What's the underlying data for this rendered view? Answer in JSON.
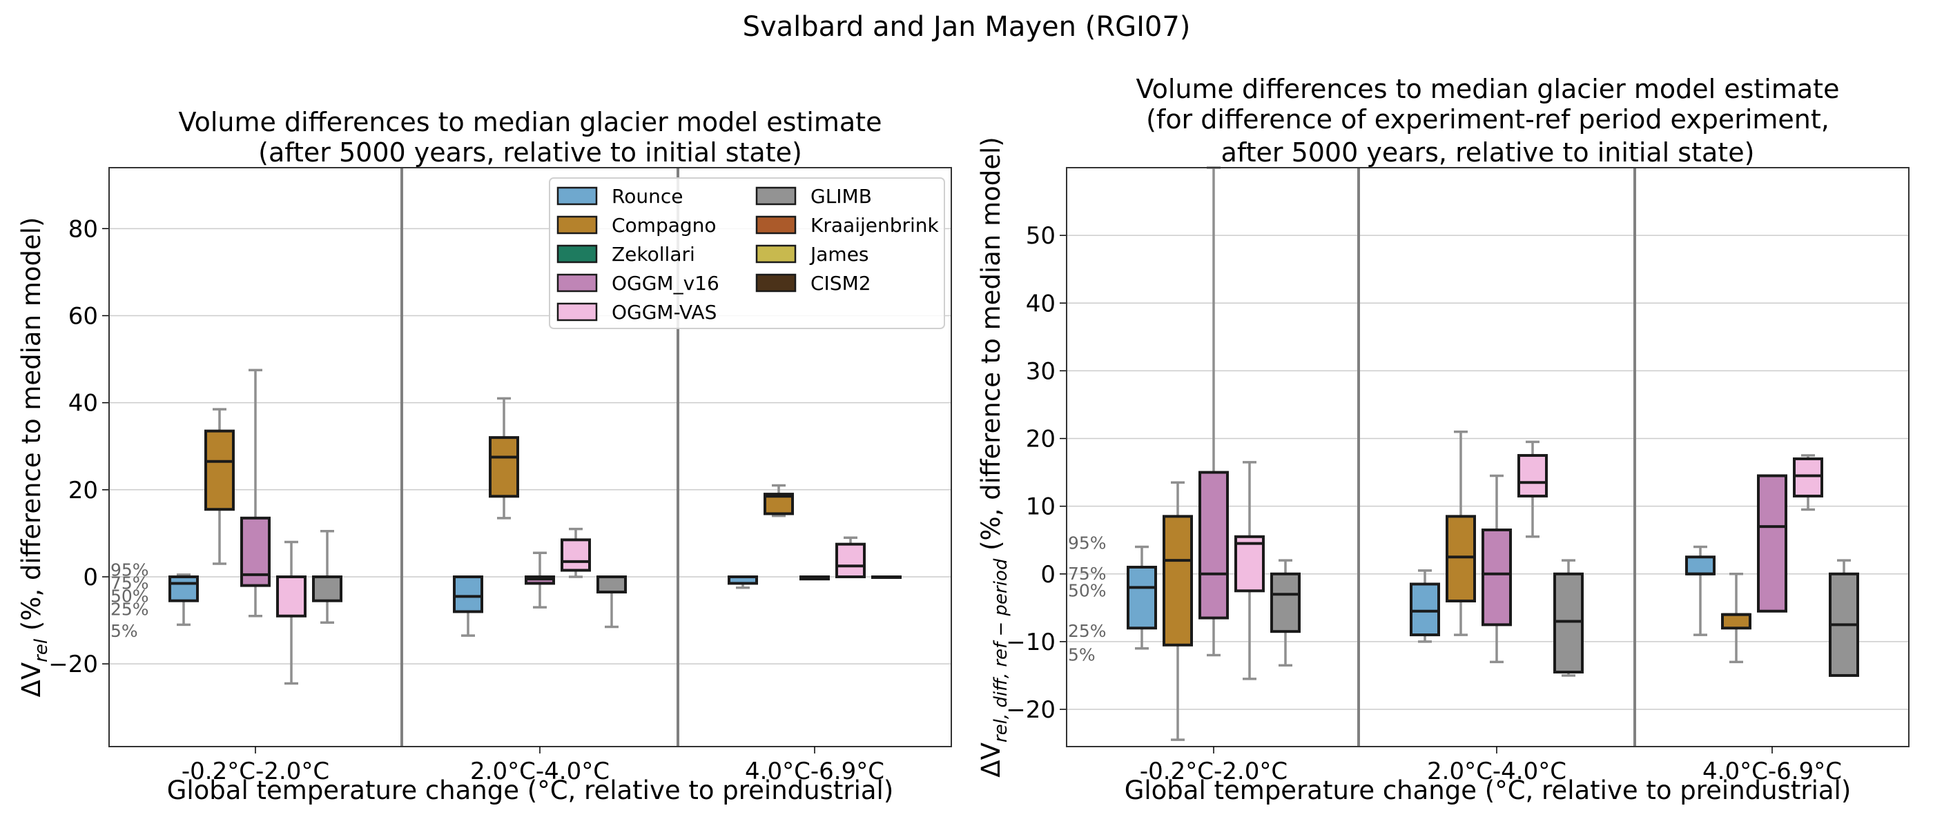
{
  "suptitle": "Svalbard and Jan Mayen (RGI07)",
  "legend": [
    {
      "name": "Rounce",
      "color": "#6fa8ce"
    },
    {
      "name": "Compagno",
      "color": "#b5822c"
    },
    {
      "name": "Zekollari",
      "color": "#1e7b5f"
    },
    {
      "name": "OGGM_v16",
      "color": "#bf85b6"
    },
    {
      "name": "OGGM-VAS",
      "color": "#f1bce0"
    },
    {
      "name": "GLIMB",
      "color": "#939393"
    },
    {
      "name": "Kraaijenbrink",
      "color": "#ab5a2a"
    },
    {
      "name": "James",
      "color": "#c8b94e"
    },
    {
      "name": "CISM2",
      "color": "#4b3219"
    }
  ],
  "chart_data": [
    {
      "type": "box",
      "title_lines": [
        "Volume differences to median glacier model estimate",
        "(after 5000 years, relative to initial state)"
      ],
      "xlabel": "Global temperature change (°C, relative to preindustrial)",
      "ylabel_main": "ΔV",
      "ylabel_sub": "rel",
      "ylabel_rest": " (%, difference to median model)",
      "ylim": [
        -39,
        94
      ],
      "yticks": [
        -20,
        0,
        20,
        40,
        60,
        80
      ],
      "grid": true,
      "legend_position": "top-right",
      "categories": [
        "-0.2°C-2.0°C",
        "2.0°C-4.0°C",
        "4.0°C-6.9°C"
      ],
      "percentile_labels": [
        {
          "text": "95%",
          "y": 1.5
        },
        {
          "text": "75%",
          "y": -1.5
        },
        {
          "text": "50%",
          "y": -4.5
        },
        {
          "text": "25%",
          "y": -7.5
        },
        {
          "text": "5%",
          "y": -12.5
        }
      ],
      "boxes": [
        {
          "cat": 0,
          "model": "Rounce",
          "slot": 0,
          "p5": -11,
          "p25": -5.5,
          "med": -1.5,
          "p75": 0,
          "p95": 0.5
        },
        {
          "cat": 0,
          "model": "Compagno",
          "slot": 1,
          "p5": 3,
          "p25": 15.5,
          "med": 26.5,
          "p75": 33.5,
          "p95": 38.5
        },
        {
          "cat": 0,
          "model": "OGGM_v16",
          "slot": 2,
          "p5": -9,
          "p25": -2,
          "med": 0.5,
          "p75": 13.5,
          "p95": 47.5
        },
        {
          "cat": 0,
          "model": "OGGM-VAS",
          "slot": 3,
          "p5": -24.5,
          "p25": -9,
          "med": 0,
          "p75": 0,
          "p95": 8
        },
        {
          "cat": 0,
          "model": "GLIMB",
          "slot": 4,
          "p5": -10.5,
          "p25": -5.5,
          "med": 0,
          "p75": 0,
          "p95": 10.5
        },
        {
          "cat": 1,
          "model": "Rounce",
          "slot": 0,
          "p5": -13.5,
          "p25": -8,
          "med": -4.5,
          "p75": 0,
          "p95": 0
        },
        {
          "cat": 1,
          "model": "Compagno",
          "slot": 1,
          "p5": 13.5,
          "p25": 18.5,
          "med": 27.5,
          "p75": 32,
          "p95": 41
        },
        {
          "cat": 1,
          "model": "OGGM_v16",
          "slot": 2,
          "p5": -7,
          "p25": -1.5,
          "med": -0.5,
          "p75": 0,
          "p95": 5.5
        },
        {
          "cat": 1,
          "model": "OGGM-VAS",
          "slot": 3,
          "p5": 0,
          "p25": 1.5,
          "med": 3.5,
          "p75": 8.5,
          "p95": 11
        },
        {
          "cat": 1,
          "model": "GLIMB",
          "slot": 4,
          "p5": -11.5,
          "p25": -3.5,
          "med": 0,
          "p75": 0,
          "p95": 0
        },
        {
          "cat": 2,
          "model": "Rounce",
          "slot": 0,
          "p5": -2.5,
          "p25": -1.5,
          "med": 0,
          "p75": 0,
          "p95": 0
        },
        {
          "cat": 2,
          "model": "Compagno",
          "slot": 1,
          "p5": 14,
          "p25": 14.5,
          "med": 18.5,
          "p75": 19,
          "p95": 21
        },
        {
          "cat": 2,
          "model": "OGGM_v16",
          "slot": 2,
          "p5": -0.5,
          "p25": -0.5,
          "med": 0,
          "p75": 0,
          "p95": 0
        },
        {
          "cat": 2,
          "model": "OGGM-VAS",
          "slot": 3,
          "p5": 0,
          "p25": 0,
          "med": 2.5,
          "p75": 7.5,
          "p95": 9
        },
        {
          "cat": 2,
          "model": "GLIMB",
          "slot": 4,
          "p5": 0,
          "p25": 0,
          "med": 0,
          "p75": 0,
          "p95": 0
        }
      ]
    },
    {
      "type": "box",
      "title_lines": [
        "Volume differences to median glacier model estimate",
        "(for difference of experiment-ref period experiment,",
        "after 5000 years, relative to initial state)"
      ],
      "xlabel": "Global temperature change (°C, relative to preindustrial)",
      "ylabel_main": "ΔV",
      "ylabel_sub": "rel, diff, ref − period",
      "ylabel_rest": " (%, difference to median model)",
      "ylim": [
        -25.5,
        60
      ],
      "yticks": [
        -20,
        -10,
        0,
        10,
        20,
        30,
        40,
        50
      ],
      "grid": true,
      "categories": [
        "-0.2°C-2.0°C",
        "2.0°C-4.0°C",
        "4.0°C-6.9°C"
      ],
      "percentile_labels": [
        {
          "text": "95%",
          "y": 4.5
        },
        {
          "text": "75%",
          "y": 0
        },
        {
          "text": "50%",
          "y": -2.5
        },
        {
          "text": "25%",
          "y": -8.5
        },
        {
          "text": "5%",
          "y": -12
        }
      ],
      "boxes": [
        {
          "cat": 0,
          "model": "Rounce",
          "slot": 0,
          "p5": -11,
          "p25": -8,
          "med": -2,
          "p75": 1,
          "p95": 4
        },
        {
          "cat": 0,
          "model": "Compagno",
          "slot": 1,
          "p5": -24.5,
          "p25": -10.5,
          "med": 2,
          "p75": 8.5,
          "p95": 13.5
        },
        {
          "cat": 0,
          "model": "OGGM_v16",
          "slot": 2,
          "p5": -12,
          "p25": -6.5,
          "med": 0,
          "p75": 15,
          "p95": 60
        },
        {
          "cat": 0,
          "model": "OGGM-VAS",
          "slot": 3,
          "p5": -15.5,
          "p25": -2.5,
          "med": 4.5,
          "p75": 5.5,
          "p95": 16.5
        },
        {
          "cat": 0,
          "model": "GLIMB",
          "slot": 4,
          "p5": -13.5,
          "p25": -8.5,
          "med": -3,
          "p75": 0,
          "p95": 2
        },
        {
          "cat": 1,
          "model": "Rounce",
          "slot": 0,
          "p5": -10,
          "p25": -9,
          "med": -5.5,
          "p75": -1.5,
          "p95": 0.5
        },
        {
          "cat": 1,
          "model": "Compagno",
          "slot": 1,
          "p5": -9,
          "p25": -4,
          "med": 2.5,
          "p75": 8.5,
          "p95": 21
        },
        {
          "cat": 1,
          "model": "OGGM_v16",
          "slot": 2,
          "p5": -13,
          "p25": -7.5,
          "med": 0,
          "p75": 6.5,
          "p95": 14.5
        },
        {
          "cat": 1,
          "model": "OGGM-VAS",
          "slot": 3,
          "p5": 5.5,
          "p25": 11.5,
          "med": 13.5,
          "p75": 17.5,
          "p95": 19.5
        },
        {
          "cat": 1,
          "model": "GLIMB",
          "slot": 4,
          "p5": -15,
          "p25": -14.5,
          "med": -7,
          "p75": 0,
          "p95": 2
        },
        {
          "cat": 2,
          "model": "Rounce",
          "slot": 0,
          "p5": -9,
          "p25": 0,
          "med": 0,
          "p75": 2.5,
          "p95": 4
        },
        {
          "cat": 2,
          "model": "Compagno",
          "slot": 1,
          "p5": -13,
          "p25": -8,
          "med": -6,
          "p75": -6,
          "p95": 0
        },
        {
          "cat": 2,
          "model": "OGGM_v16",
          "slot": 2,
          "p5": -5.5,
          "p25": -5.5,
          "med": 7,
          "p75": 14.5,
          "p95": 14.5
        },
        {
          "cat": 2,
          "model": "OGGM-VAS",
          "slot": 3,
          "p5": 9.5,
          "p25": 11.5,
          "med": 14.5,
          "p75": 17,
          "p95": 17.5
        },
        {
          "cat": 2,
          "model": "GLIMB",
          "slot": 4,
          "p5": -15,
          "p25": -15,
          "med": -7.5,
          "p75": 0,
          "p95": 2
        }
      ]
    }
  ]
}
